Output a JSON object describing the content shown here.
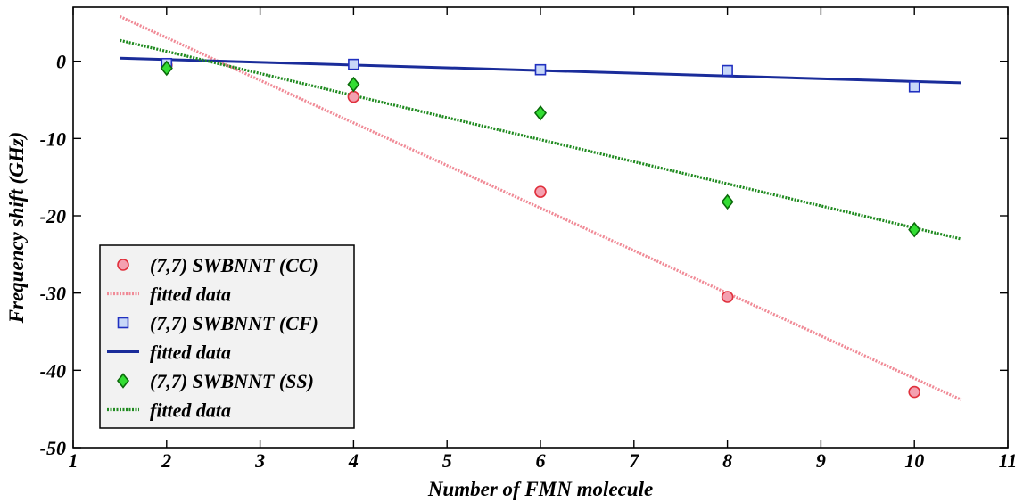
{
  "chart_data": {
    "type": "scatter",
    "xlabel": "Number of FMN molecule",
    "ylabel": "Frequency shift (GHz)",
    "xlim": [
      1,
      11
    ],
    "ylim": [
      -50,
      7
    ],
    "xticks": [
      "1",
      "2",
      "3",
      "4",
      "5",
      "6",
      "7",
      "8",
      "9",
      "10",
      "11"
    ],
    "yticks": [
      "0",
      "-10",
      "-20",
      "-30",
      "-40",
      "-50"
    ],
    "legend_position": "bottom-left",
    "series": [
      {
        "name": "(7,7) SWBNNT (CC)",
        "marker": "circle",
        "color": "#f4a0b0",
        "edge_color": "#e0303c",
        "x": [
          2,
          4,
          6,
          8,
          10
        ],
        "y": [
          -0.5,
          -4.6,
          -16.9,
          -30.5,
          -42.8
        ],
        "fit": {
          "name": "fitted data",
          "x": [
            1.5,
            10.5
          ],
          "y": [
            5.8,
            -43.8
          ],
          "color": "#f08a96",
          "style": "dotted"
        }
      },
      {
        "name": "(7,7) SWBNNT (CF)",
        "marker": "square",
        "color": "#c8d8f8",
        "edge_color": "#2030c0",
        "x": [
          2,
          4,
          6,
          8,
          10
        ],
        "y": [
          -0.3,
          -0.4,
          -1.1,
          -1.2,
          -3.3
        ],
        "fit": {
          "name": "fitted data",
          "x": [
            1.5,
            10.5
          ],
          "y": [
            0.4,
            -2.8
          ],
          "color": "#1a2c9a",
          "style": "solid"
        }
      },
      {
        "name": "(7,7) SWBNNT (SS)",
        "marker": "diamond",
        "color": "#33dd33",
        "edge_color": "#0a6a0a",
        "x": [
          2,
          4,
          6,
          8,
          10
        ],
        "y": [
          -0.9,
          -3.0,
          -6.7,
          -18.2,
          -21.8
        ],
        "fit": {
          "name": "fitted data",
          "x": [
            1.5,
            10.5
          ],
          "y": [
            2.7,
            -23.0
          ],
          "color": "#1f8a1f",
          "style": "dotted"
        }
      }
    ]
  }
}
